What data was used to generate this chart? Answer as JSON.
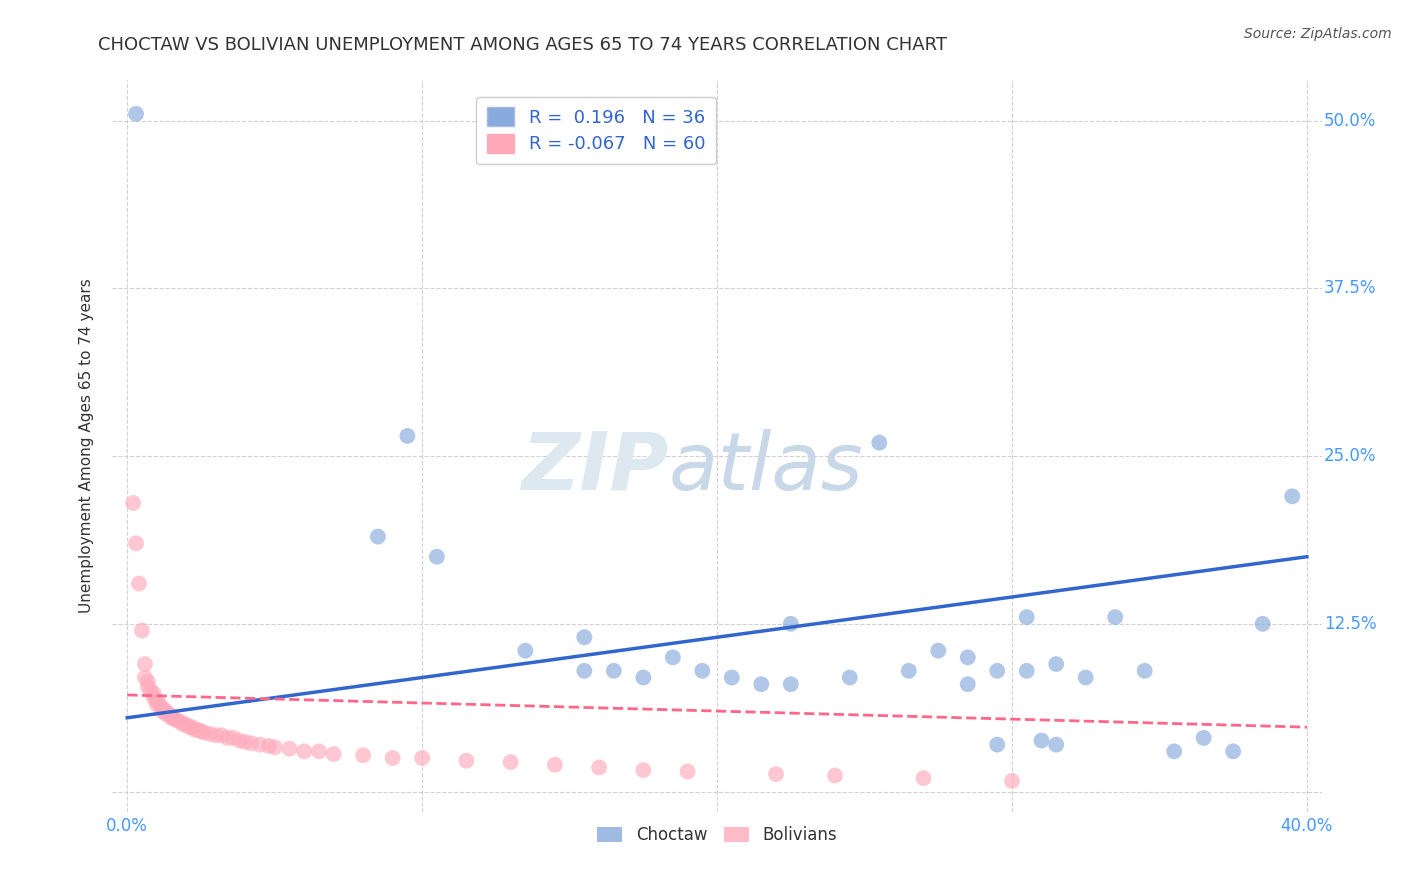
{
  "title": "CHOCTAW VS BOLIVIAN UNEMPLOYMENT AMONG AGES 65 TO 74 YEARS CORRELATION CHART",
  "source": "Source: ZipAtlas.com",
  "ylabel": "Unemployment Among Ages 65 to 74 years",
  "xlim": [
    -0.005,
    0.405
  ],
  "ylim": [
    -0.015,
    0.53
  ],
  "xticks": [
    0.0,
    0.1,
    0.2,
    0.3,
    0.4
  ],
  "xtick_labels": [
    "0.0%",
    "",
    "",
    "",
    "40.0%"
  ],
  "ytick_positions": [
    0.0,
    0.125,
    0.25,
    0.375,
    0.5
  ],
  "ytick_labels": [
    "",
    "12.5%",
    "25.0%",
    "37.5%",
    "50.0%"
  ],
  "grid_color": "#cccccc",
  "background_color": "#ffffff",
  "choctaw_color": "#88aadd",
  "bolivian_color": "#ffaabb",
  "choctaw_line_color": "#3366cc",
  "bolivian_line_color": "#ff6688",
  "choctaw_R": 0.196,
  "choctaw_N": 36,
  "bolivian_R": -0.067,
  "bolivian_N": 60,
  "choctaw_scatter_x": [
    0.003,
    0.085,
    0.095,
    0.105,
    0.135,
    0.155,
    0.165,
    0.175,
    0.185,
    0.195,
    0.205,
    0.215,
    0.225,
    0.245,
    0.255,
    0.265,
    0.275,
    0.285,
    0.295,
    0.305,
    0.315,
    0.325,
    0.335,
    0.345,
    0.295,
    0.31,
    0.315,
    0.355,
    0.365,
    0.375,
    0.385,
    0.395,
    0.155,
    0.225,
    0.285,
    0.305
  ],
  "choctaw_scatter_y": [
    0.505,
    0.19,
    0.265,
    0.175,
    0.105,
    0.115,
    0.09,
    0.085,
    0.1,
    0.09,
    0.085,
    0.08,
    0.125,
    0.085,
    0.26,
    0.09,
    0.105,
    0.08,
    0.09,
    0.09,
    0.095,
    0.085,
    0.13,
    0.09,
    0.035,
    0.038,
    0.035,
    0.03,
    0.04,
    0.03,
    0.125,
    0.22,
    0.09,
    0.08,
    0.1,
    0.13
  ],
  "bolivian_scatter_x": [
    0.002,
    0.003,
    0.004,
    0.005,
    0.006,
    0.006,
    0.007,
    0.007,
    0.008,
    0.009,
    0.009,
    0.01,
    0.01,
    0.011,
    0.012,
    0.012,
    0.013,
    0.013,
    0.014,
    0.015,
    0.015,
    0.016,
    0.017,
    0.018,
    0.019,
    0.02,
    0.021,
    0.022,
    0.023,
    0.024,
    0.025,
    0.026,
    0.028,
    0.03,
    0.032,
    0.034,
    0.036,
    0.038,
    0.04,
    0.042,
    0.045,
    0.048,
    0.05,
    0.055,
    0.06,
    0.065,
    0.07,
    0.08,
    0.09,
    0.1,
    0.115,
    0.13,
    0.145,
    0.16,
    0.175,
    0.19,
    0.22,
    0.24,
    0.27,
    0.3
  ],
  "bolivian_scatter_y": [
    0.215,
    0.185,
    0.155,
    0.12,
    0.095,
    0.085,
    0.082,
    0.078,
    0.075,
    0.073,
    0.07,
    0.068,
    0.065,
    0.065,
    0.062,
    0.06,
    0.06,
    0.058,
    0.058,
    0.056,
    0.055,
    0.054,
    0.053,
    0.052,
    0.05,
    0.05,
    0.048,
    0.048,
    0.046,
    0.046,
    0.045,
    0.044,
    0.043,
    0.042,
    0.042,
    0.04,
    0.04,
    0.038,
    0.037,
    0.036,
    0.035,
    0.034,
    0.033,
    0.032,
    0.03,
    0.03,
    0.028,
    0.027,
    0.025,
    0.025,
    0.023,
    0.022,
    0.02,
    0.018,
    0.016,
    0.015,
    0.013,
    0.012,
    0.01,
    0.008
  ],
  "watermark_top": "ZIP",
  "watermark_bottom": "atlas",
  "watermark_color": "#e0e8f0",
  "title_fontsize": 13,
  "label_fontsize": 11,
  "tick_fontsize": 12,
  "source_fontsize": 10,
  "choctaw_line_x": [
    0.0,
    0.4
  ],
  "choctaw_line_y_start": 0.055,
  "choctaw_line_y_end": 0.175,
  "bolivian_line_x": [
    0.0,
    0.4
  ],
  "bolivian_line_y_start": 0.072,
  "bolivian_line_y_end": 0.048
}
